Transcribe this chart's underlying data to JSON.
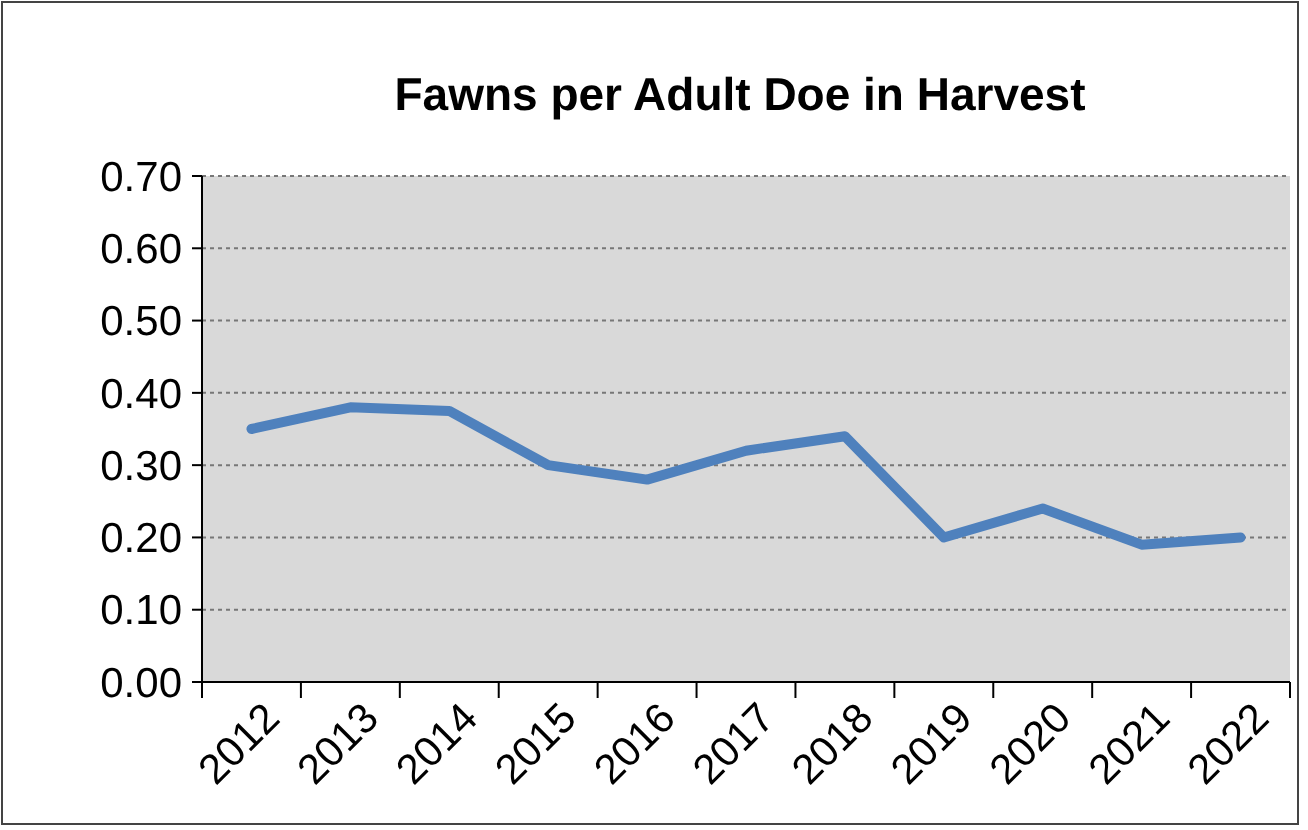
{
  "chart_data": {
    "type": "line",
    "title": "Fawns per Adult Doe in Harvest",
    "categories": [
      "2012",
      "2013",
      "2014",
      "2015",
      "2016",
      "2017",
      "2018",
      "2019",
      "2020",
      "2021",
      "2022"
    ],
    "series": [
      {
        "color": "#4f81bd",
        "values": [
          0.35,
          0.38,
          0.375,
          0.3,
          0.28,
          0.32,
          0.34,
          0.2,
          0.24,
          0.19,
          0.2
        ]
      }
    ],
    "ylim": [
      0,
      0.7
    ],
    "yticks": [
      {
        "value": 0,
        "label": "0.00"
      },
      {
        "value": 0.1,
        "label": "0.10"
      },
      {
        "value": 0.2,
        "label": "0.20"
      },
      {
        "value": 0.3,
        "label": "0.30"
      },
      {
        "value": 0.4,
        "label": "0.40"
      },
      {
        "value": 0.5,
        "label": "0.50"
      },
      {
        "value": 0.6,
        "label": "0.60"
      },
      {
        "value": 0.7,
        "label": "0.70"
      }
    ],
    "grid": "y",
    "marker": "none",
    "line_style": "solid"
  }
}
